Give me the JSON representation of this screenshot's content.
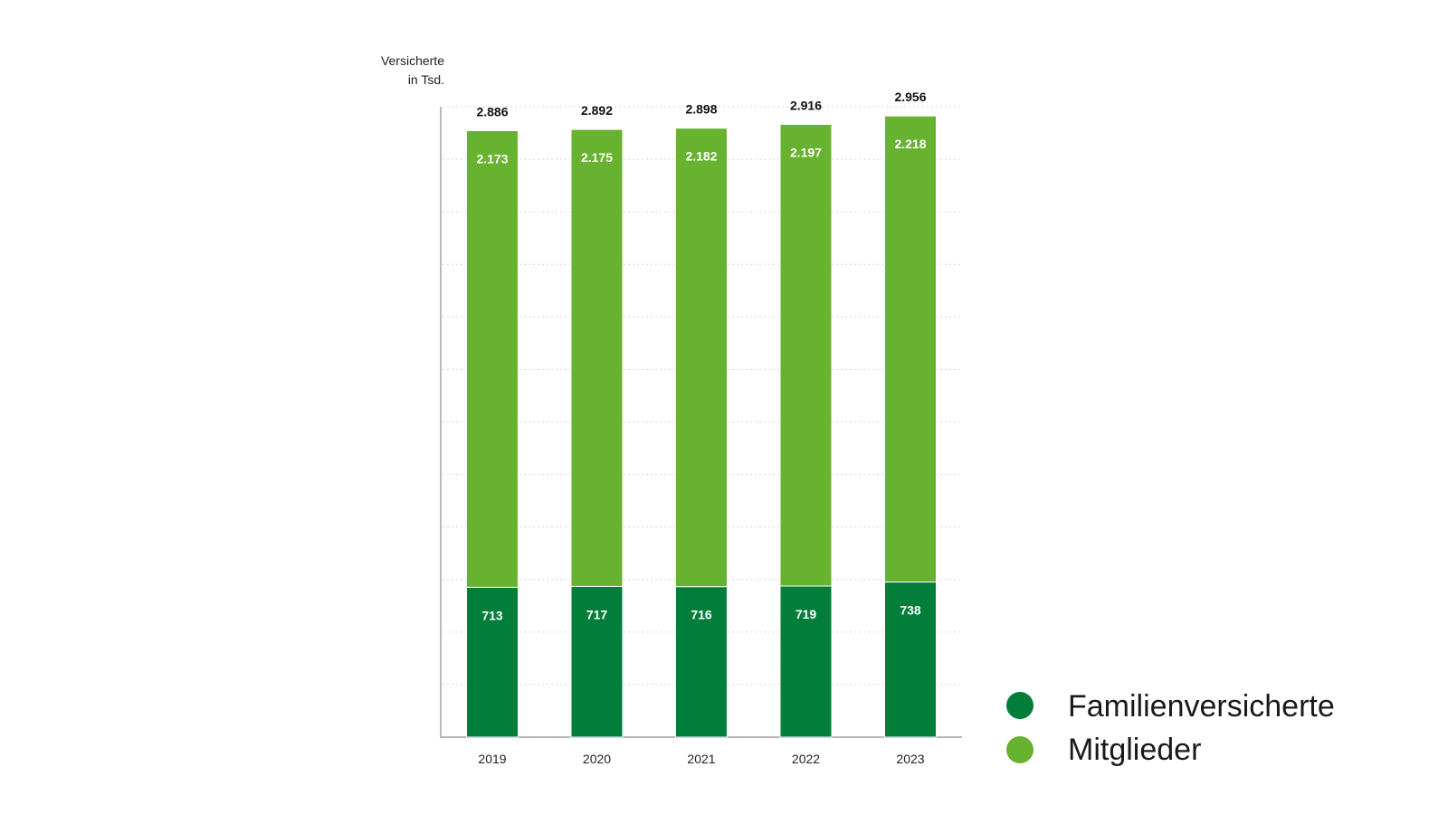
{
  "chart_data": {
    "type": "bar",
    "stacked": true,
    "title": "",
    "ylabel_lines": [
      "Versicherte",
      "in Tsd."
    ],
    "xlabel": "",
    "categories": [
      "2019",
      "2020",
      "2021",
      "2022",
      "2023"
    ],
    "series": [
      {
        "name": "Familienversicherte",
        "color": "#007e3a",
        "values": [
          713,
          717,
          716,
          719,
          738
        ]
      },
      {
        "name": "Mitglieder",
        "color": "#67b22f",
        "values": [
          2173,
          2175,
          2182,
          2197,
          2218
        ]
      }
    ],
    "totals": [
      2886,
      2892,
      2898,
      2916,
      2956
    ],
    "display_labels": {
      "totals": [
        "2.886",
        "2.892",
        "2.898",
        "2.916",
        "2.956"
      ],
      "series": [
        [
          "713",
          "717",
          "716",
          "719",
          "738"
        ],
        [
          "2.173",
          "2.175",
          "2.182",
          "2.197",
          "2.218"
        ]
      ]
    },
    "ylim": [
      0,
      3000
    ],
    "grid": true,
    "legend_position": "bottom-right"
  }
}
